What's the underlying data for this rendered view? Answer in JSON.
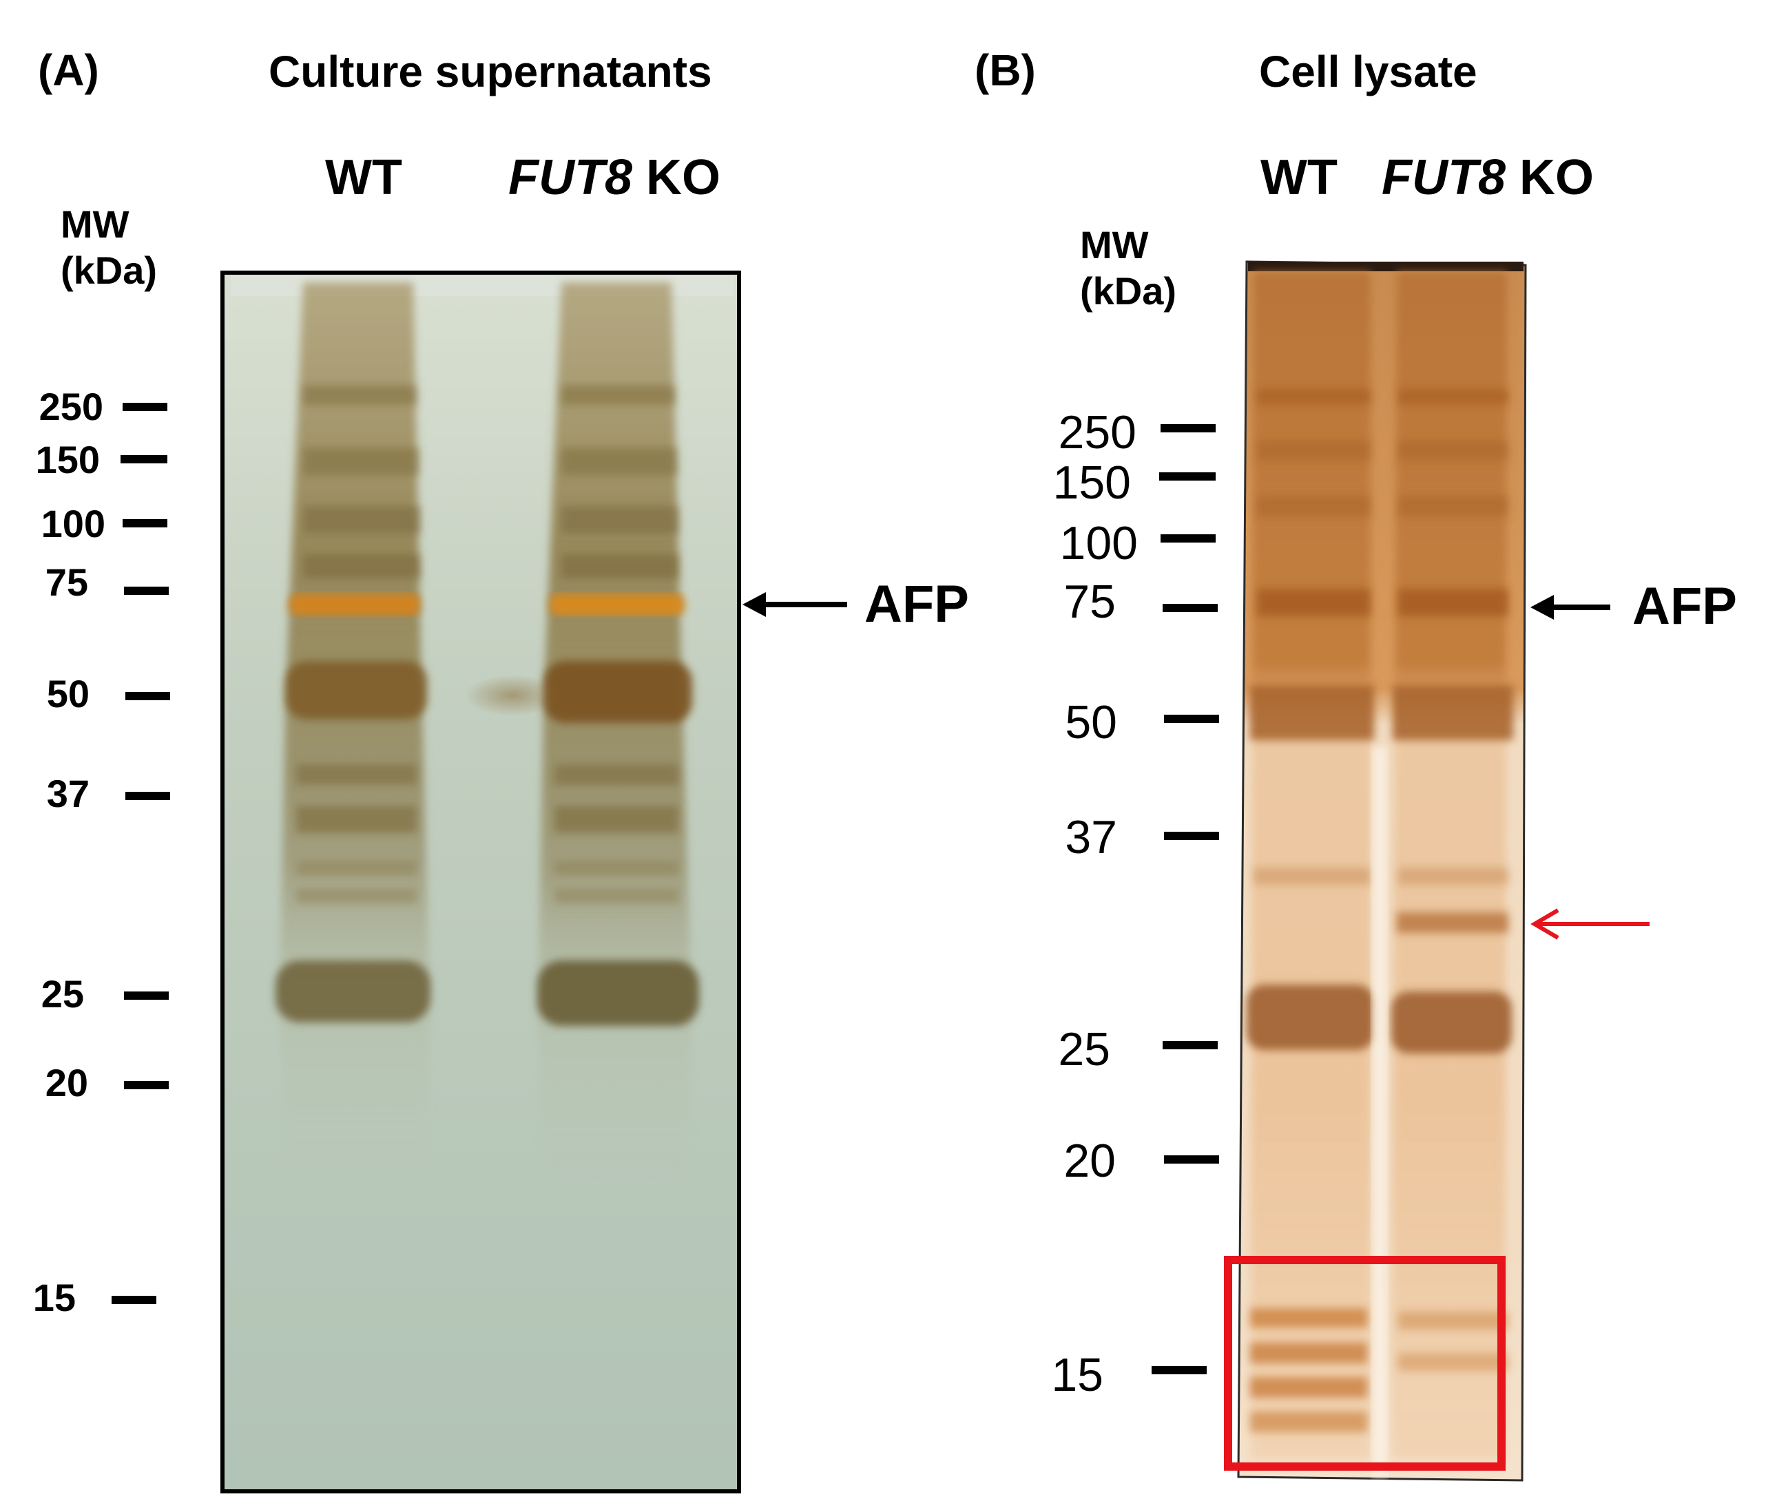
{
  "panel_a": {
    "letter": "(A)",
    "title": "Culture supernatants",
    "lanes": [
      {
        "plain": "WT",
        "italic": "",
        "suffix": ""
      },
      {
        "plain": "",
        "italic": "FUT8",
        "suffix": " KO"
      }
    ],
    "mw_header_line1": "MW",
    "mw_header_line2": "(kDa)",
    "markers": [
      "250",
      "150",
      "100",
      "75",
      "50",
      "37",
      "25",
      "20",
      "15"
    ],
    "annotation": "AFP"
  },
  "panel_b": {
    "letter": "(B)",
    "title": "Cell lysate",
    "lanes": [
      {
        "plain": "WT",
        "italic": "",
        "suffix": ""
      },
      {
        "plain": "",
        "italic": "FUT8",
        "suffix": " KO"
      }
    ],
    "mw_header_line1": "MW",
    "mw_header_line2": "(kDa)",
    "markers": [
      "250",
      "150",
      "100",
      "75",
      "50",
      "37",
      "25",
      "20",
      "15"
    ],
    "annotation": "AFP",
    "highlight_color": "#e8141c",
    "red_arrow_color": "#e8141c"
  },
  "colors": {
    "gel_a_background": "#b9c8b6",
    "gel_b_background": "#f3dcc0",
    "band_gold": "#8a7440",
    "band_orange": "#c87a1c",
    "band_brown": "#a45e26"
  }
}
